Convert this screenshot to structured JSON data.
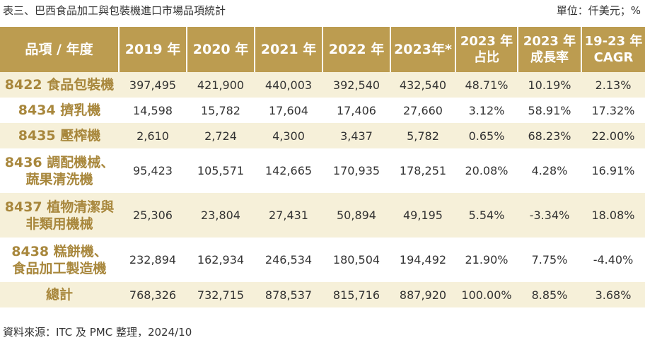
{
  "caption": "表三、巴西食品加工與包裝機進口市場品項統計",
  "unit": "單位：仟美元；%",
  "headers": {
    "item": "品項 / 年度",
    "y2019": "2019 年",
    "y2020": "2020 年",
    "y2021": "2021 年",
    "y2022": "2022 年",
    "y2023": "2023年*",
    "share_line1": "2023 年",
    "share_line2": "占比",
    "growth_line1": "2023 年",
    "growth_line2": "成長率",
    "cagr_line1": "19-23 年",
    "cagr_line2": "CAGR"
  },
  "rows": [
    {
      "item_line1": "8422 食品包裝機",
      "item_line2": "",
      "y2019": "397,495",
      "y2020": "421,900",
      "y2021": "440,003",
      "y2022": "392,540",
      "y2023": "432,540",
      "share": "48.71%",
      "growth": "10.19%",
      "cagr": "2.13%"
    },
    {
      "item_line1": "8434 擠乳機",
      "item_line2": "",
      "y2019": "14,598",
      "y2020": "15,782",
      "y2021": "17,604",
      "y2022": "17,406",
      "y2023": "27,660",
      "share": "3.12%",
      "growth": "58.91%",
      "cagr": "17.32%"
    },
    {
      "item_line1": "8435 壓榨機",
      "item_line2": "",
      "y2019": "2,610",
      "y2020": "2,724",
      "y2021": "4,300",
      "y2022": "3,437",
      "y2023": "5,782",
      "share": "0.65%",
      "growth": "68.23%",
      "cagr": "22.00%"
    },
    {
      "item_line1": "8436 調配機械、",
      "item_line2": "蔬果清洗機",
      "y2019": "95,423",
      "y2020": "105,571",
      "y2021": "142,665",
      "y2022": "170,935",
      "y2023": "178,251",
      "share": "20.08%",
      "growth": "4.28%",
      "cagr": "16.91%"
    },
    {
      "item_line1": "8437 植物清潔與",
      "item_line2": "非類用機械",
      "y2019": "25,306",
      "y2020": "23,804",
      "y2021": "27,431",
      "y2022": "50,894",
      "y2023": "49,195",
      "share": "5.54%",
      "growth": "-3.34%",
      "cagr": "18.08%"
    },
    {
      "item_line1": "8438 糕餅機、",
      "item_line2": "食品加工製造機",
      "y2019": "232,894",
      "y2020": "162,934",
      "y2021": "246,534",
      "y2022": "180,504",
      "y2023": "194,492",
      "share": "21.90%",
      "growth": "7.75%",
      "cagr": "-4.40%"
    },
    {
      "item_line1": "總計",
      "item_line2": "",
      "y2019": "768,326",
      "y2020": "732,715",
      "y2021": "878,537",
      "y2022": "815,716",
      "y2023": "887,920",
      "share": "100.00%",
      "growth": "8.85%",
      "cagr": "3.68%"
    }
  ],
  "source": "資料來源：ITC 及 PMC 整理，2024/10",
  "colors": {
    "header_bg": "#bc9c50",
    "item_text": "#a8873c",
    "band_bg": "#f6f0d9"
  }
}
